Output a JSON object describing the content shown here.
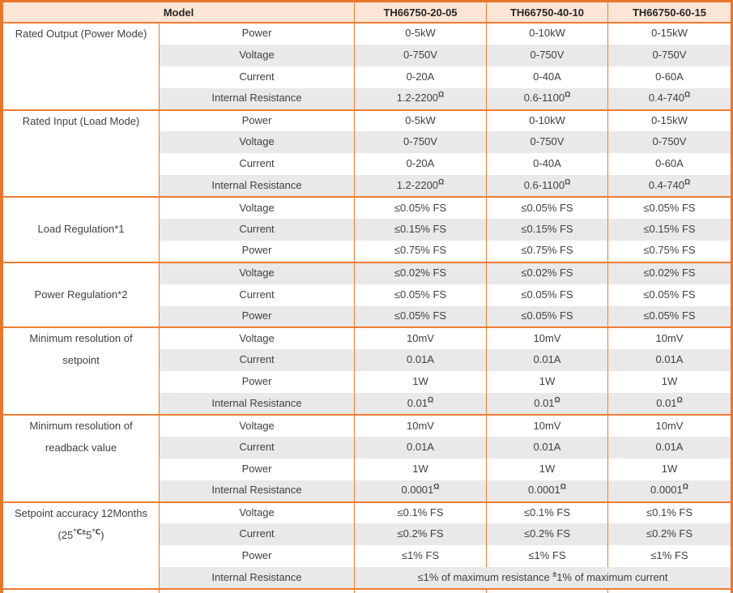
{
  "header": {
    "model_label": "Model",
    "models": [
      "TH66750-20-05",
      "TH66750-40-10",
      "TH66750-60-15"
    ]
  },
  "colors": {
    "border_orange": "#ED7D31",
    "outer_border_orange": "#E8762C",
    "header_peach": "#FBE5D6",
    "row_gray": "#E9E9E9",
    "row_white": "#FFFFFF",
    "text_dark": "#404040",
    "header_text": "#262626"
  },
  "sections": [
    {
      "category": [
        [
          "Rated Output (Power Mode)"
        ]
      ],
      "valign": "top",
      "rows": [
        {
          "param": "Power",
          "values": [
            "0-5kW",
            "0-10kW",
            "0-15kW"
          ]
        },
        {
          "param": "Voltage",
          "values": [
            "0-750V",
            "0-750V",
            "0-750V"
          ]
        },
        {
          "param": "Current",
          "values": [
            "0-20A",
            "0-40A",
            "0-60A"
          ]
        },
        {
          "param": "Internal Resistance",
          "values": [
            [
              "1.2-2200",
              {
                "t": "Ω",
                "sup": true
              }
            ],
            [
              "0.6-1100",
              {
                "t": "Ω",
                "sup": true
              }
            ],
            [
              "0.4-740",
              {
                "t": "Ω",
                "sup": true
              }
            ]
          ]
        }
      ]
    },
    {
      "category": [
        [
          "Rated Input (Load Mode)"
        ]
      ],
      "valign": "top",
      "rows": [
        {
          "param": "Power",
          "values": [
            "0-5kW",
            "0-10kW",
            "0-15kW"
          ]
        },
        {
          "param": "Voltage",
          "values": [
            "0-750V",
            "0-750V",
            "0-750V"
          ]
        },
        {
          "param": "Current",
          "values": [
            "0-20A",
            "0-40A",
            "0-60A"
          ]
        },
        {
          "param": "Internal Resistance",
          "values": [
            [
              "1.2-2200",
              {
                "t": "Ω",
                "sup": true
              }
            ],
            [
              "0.6-1100",
              {
                "t": "Ω",
                "sup": true
              }
            ],
            [
              "0.4-740",
              {
                "t": "Ω",
                "sup": true
              }
            ]
          ]
        }
      ]
    },
    {
      "category": [
        [
          "Load Regulation*1"
        ]
      ],
      "valign": "middle",
      "rows": [
        {
          "param": "Voltage",
          "values": [
            "≤0.05% FS",
            "≤0.05% FS",
            "≤0.05% FS"
          ]
        },
        {
          "param": "Current",
          "values": [
            "≤0.15% FS",
            "≤0.15% FS",
            "≤0.15% FS"
          ]
        },
        {
          "param": "Power",
          "values": [
            "≤0.75% FS",
            "≤0.75% FS",
            "≤0.75% FS"
          ]
        }
      ]
    },
    {
      "category": [
        [
          "Power Regulation*2"
        ]
      ],
      "valign": "middle",
      "rows": [
        {
          "param": "Voltage",
          "values": [
            "≤0.02% FS",
            "≤0.02% FS",
            "≤0.02% FS"
          ]
        },
        {
          "param": "Current",
          "values": [
            "≤0.05% FS",
            "≤0.05% FS",
            "≤0.05% FS"
          ]
        },
        {
          "param": "Power",
          "values": [
            "≤0.05% FS",
            "≤0.05% FS",
            "≤0.05% FS"
          ]
        }
      ]
    },
    {
      "category": [
        [
          "Minimum resolution of"
        ],
        [
          "setpoint"
        ]
      ],
      "valign": "top",
      "rows": [
        {
          "param": "Voltage",
          "values": [
            "10mV",
            "10mV",
            "10mV"
          ]
        },
        {
          "param": "Current",
          "values": [
            "0.01A",
            "0.01A",
            "0.01A"
          ]
        },
        {
          "param": "Power",
          "values": [
            "1W",
            "1W",
            "1W"
          ]
        },
        {
          "param": "Internal Resistance",
          "values": [
            [
              "0.01",
              {
                "t": "Ω",
                "sup": true
              }
            ],
            [
              "0.01",
              {
                "t": "Ω",
                "sup": true
              }
            ],
            [
              "0.01",
              {
                "t": "Ω",
                "sup": true
              }
            ]
          ]
        }
      ]
    },
    {
      "category": [
        [
          "Minimum resolution of"
        ],
        [
          "readback value"
        ]
      ],
      "valign": "top",
      "rows": [
        {
          "param": "Voltage",
          "values": [
            "10mV",
            "10mV",
            "10mV"
          ]
        },
        {
          "param": "Current",
          "values": [
            "0.01A",
            "0.01A",
            "0.01A"
          ]
        },
        {
          "param": "Power",
          "values": [
            "1W",
            "1W",
            "1W"
          ]
        },
        {
          "param": "Internal Resistance",
          "values": [
            [
              "0.0001",
              {
                "t": "Ω",
                "sup": true
              }
            ],
            [
              "0.0001",
              {
                "t": "Ω",
                "sup": true
              }
            ],
            [
              "0.0001",
              {
                "t": "Ω",
                "sup": true
              }
            ]
          ]
        }
      ]
    },
    {
      "category": [
        [
          "Setpoint accuracy 12Months"
        ],
        [
          "(25",
          {
            "t": "℃±",
            "sup": true
          },
          "5",
          {
            "t": "℃",
            "sup": true
          },
          ")"
        ]
      ],
      "valign": "top",
      "rows": [
        {
          "param": "Voltage",
          "values": [
            "≤0.1% FS",
            "≤0.1% FS",
            "≤0.1% FS"
          ]
        },
        {
          "param": "Current",
          "values": [
            "≤0.2% FS",
            "≤0.2% FS",
            "≤0.2% FS"
          ]
        },
        {
          "param": "Power",
          "values": [
            "≤1% FS",
            "≤1% FS",
            "≤1% FS"
          ]
        },
        {
          "param": "Internal Resistance",
          "span_value": [
            "≤1% of maximum resistance ",
            {
              "t": "±",
              "sup": true
            },
            "1% of maximum current"
          ]
        }
      ]
    }
  ]
}
